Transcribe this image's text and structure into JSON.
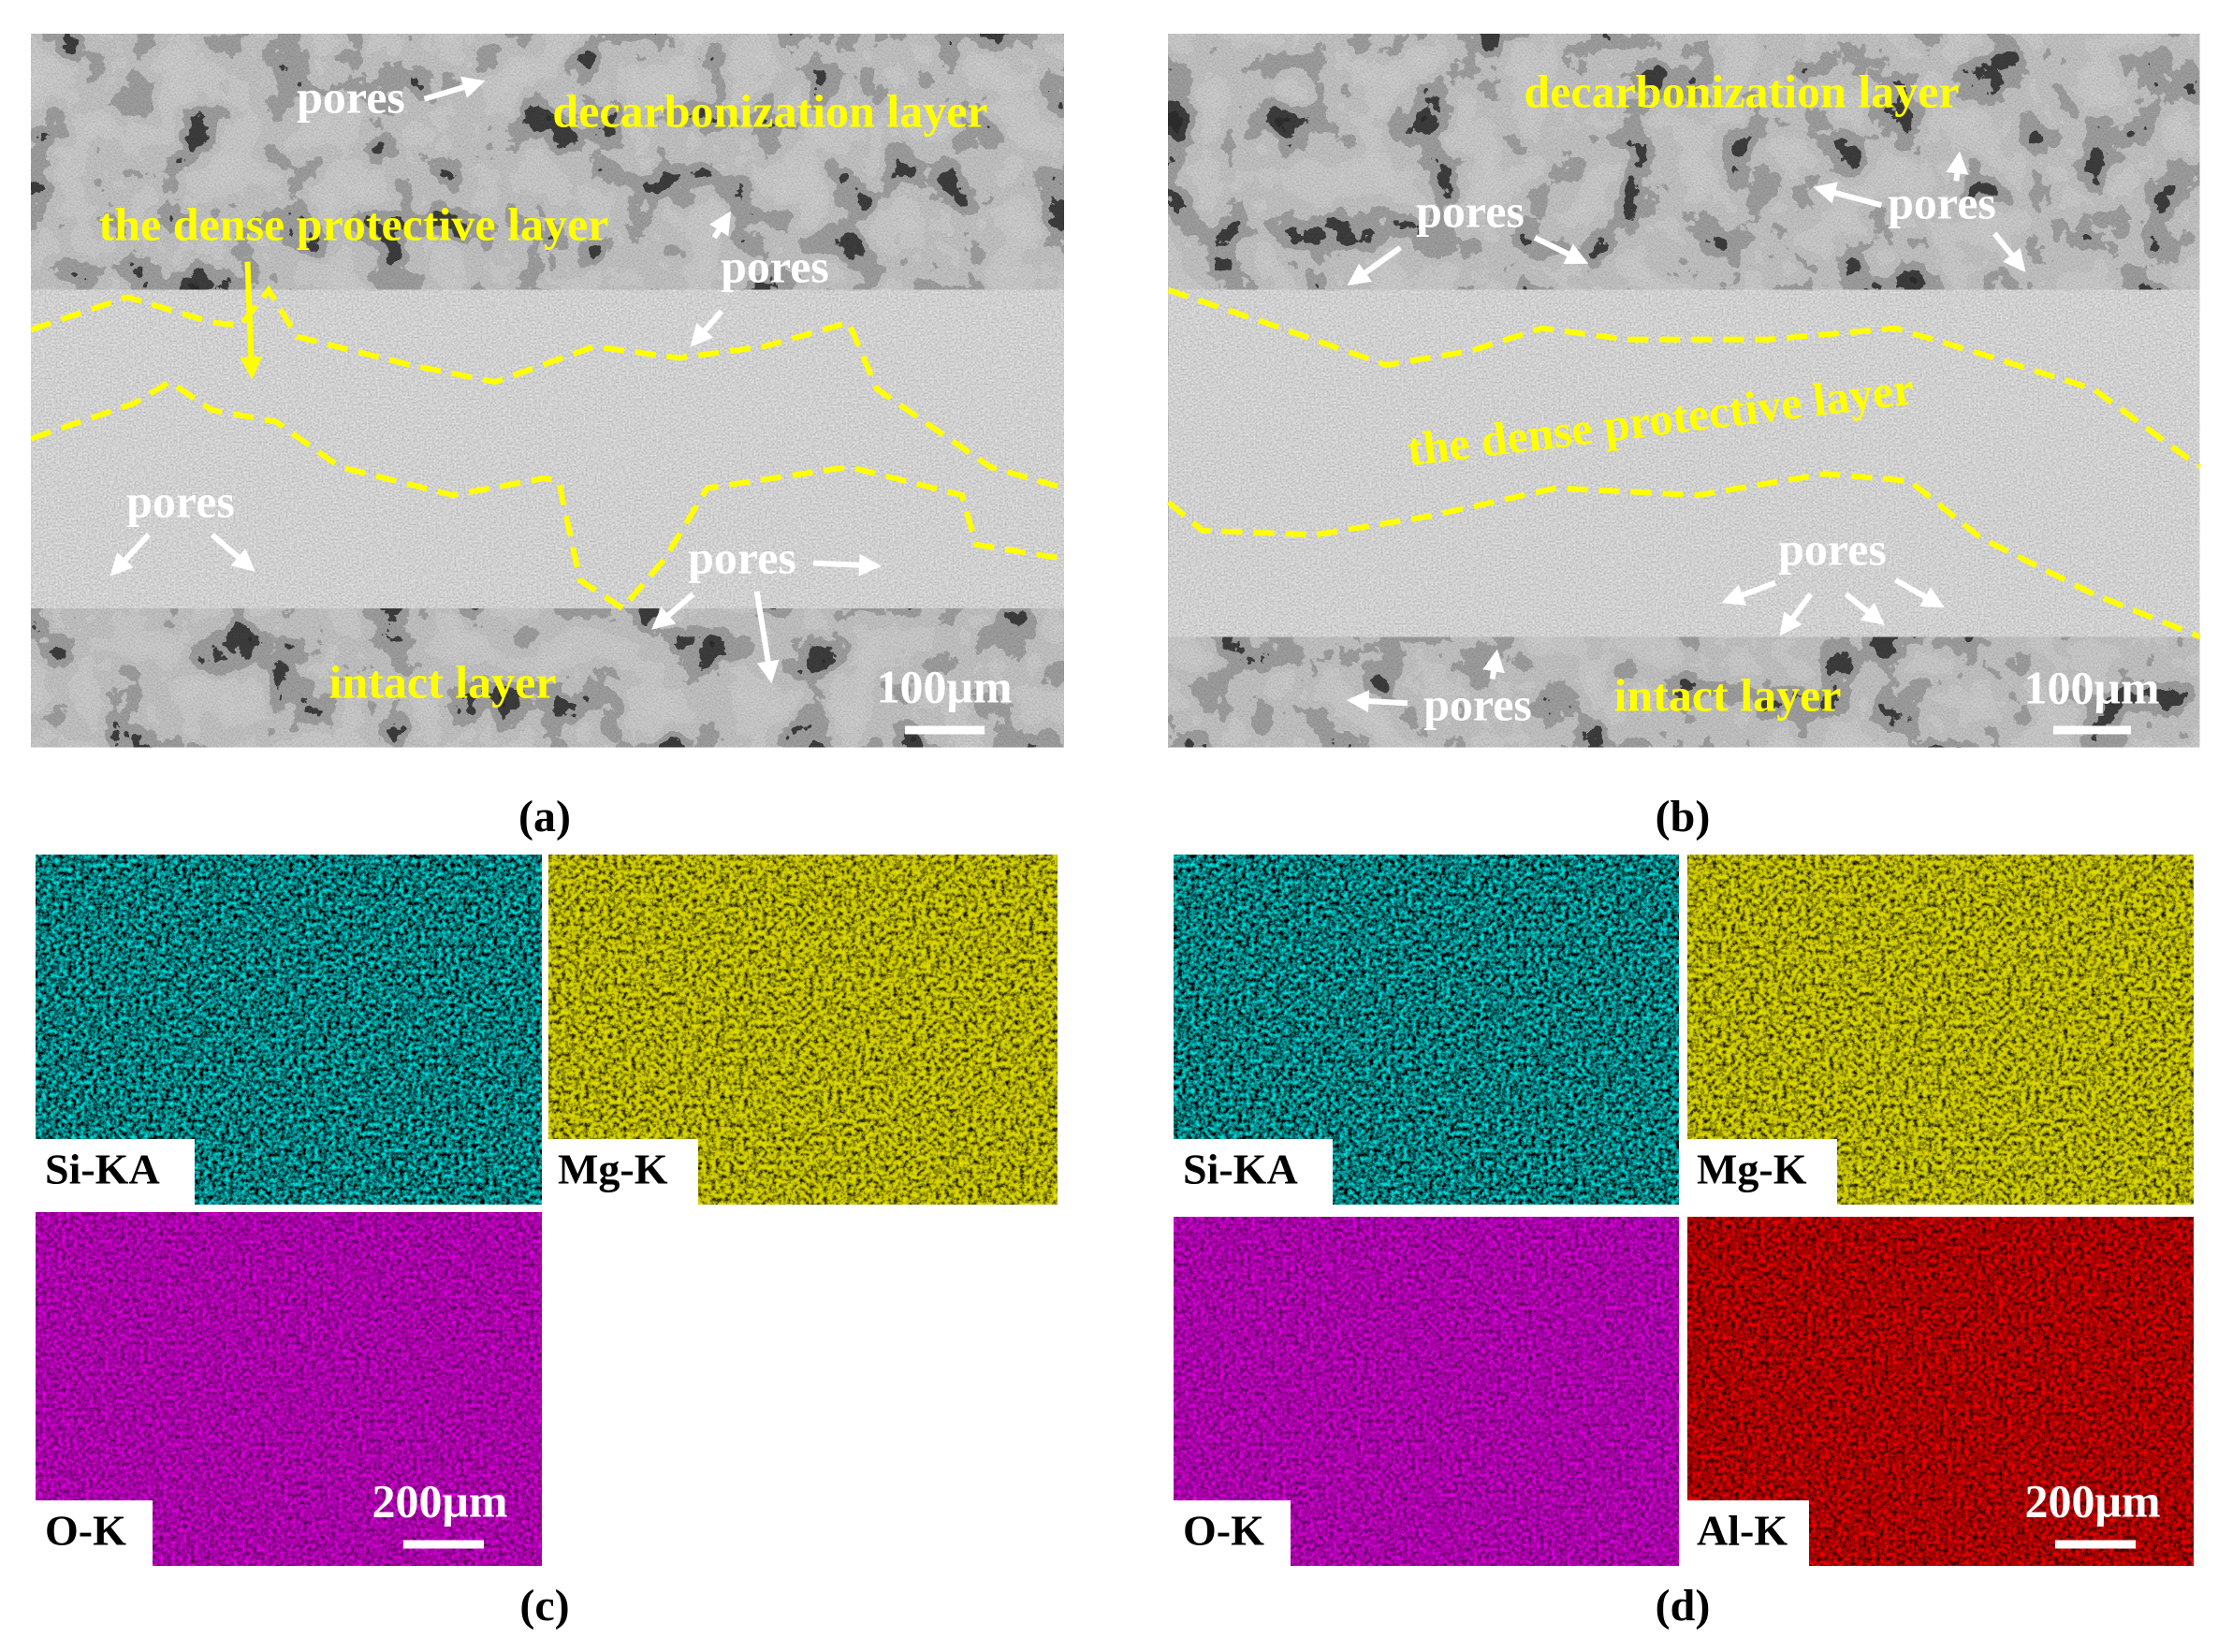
{
  "panel_a": {
    "label": "(a)",
    "scale_bar": "100μm",
    "annotations": [
      "pores",
      "decarbonization layer",
      "the dense protective layer",
      "pores",
      "pores",
      "pores",
      "intact layer"
    ]
  },
  "panel_b": {
    "label": "(b)",
    "scale_bar": "100μm",
    "annotations": [
      "decarbonization layer",
      "pores",
      "pores",
      "the dense protective layer",
      "pores",
      "pores",
      "intact layer"
    ]
  },
  "panel_c": {
    "label": "(c)",
    "scale_bar": "200μm",
    "maps": [
      "Si-KA",
      "Mg-K",
      "O-K"
    ]
  },
  "panel_d": {
    "label": "(d)",
    "scale_bar": "200μm",
    "maps": [
      "Si-KA",
      "Mg-K",
      "O-K",
      "Al-K"
    ]
  }
}
